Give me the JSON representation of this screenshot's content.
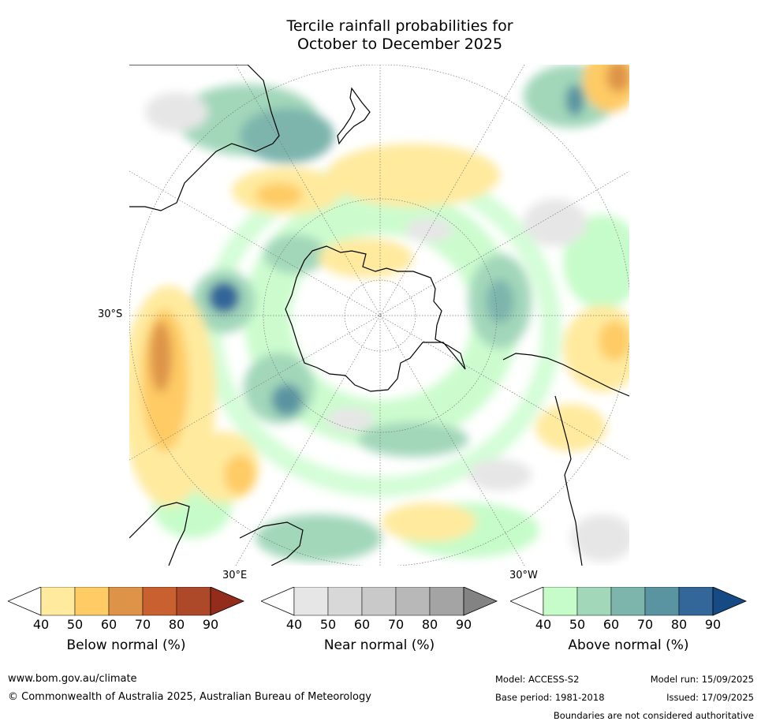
{
  "title": {
    "line1": "Tercile rainfall probabilities for",
    "line2": "October to December 2025"
  },
  "map": {
    "projection": "south polar stereographic",
    "lat_label": "30°S",
    "lon_labels": {
      "left": "30°E",
      "right": "30°W"
    },
    "colors": {
      "land_outline": "#000000",
      "graticule": "#777777",
      "water": "#ffffff"
    }
  },
  "colorbars": [
    {
      "label": "Below normal (%)",
      "ticks": [
        "40",
        "50",
        "60",
        "70",
        "80",
        "90"
      ],
      "colors": [
        "#ffffff",
        "#ffea9e",
        "#fecb65",
        "#de9448",
        "#c8602f",
        "#ad4829",
        "#942c1c"
      ]
    },
    {
      "label": "Near normal (%)",
      "ticks": [
        "40",
        "50",
        "60",
        "70",
        "80",
        "90"
      ],
      "colors": [
        "#ffffff",
        "#e6e6e6",
        "#d8d8d8",
        "#c9c9c9",
        "#b8b8b8",
        "#a4a4a4",
        "#838383"
      ]
    },
    {
      "label": "Above normal (%)",
      "ticks": [
        "40",
        "50",
        "60",
        "70",
        "80",
        "90"
      ],
      "colors": [
        "#ffffff",
        "#c6fcc9",
        "#a2d7ba",
        "#7db5ad",
        "#5a94a1",
        "#336699",
        "#154a85"
      ]
    }
  ],
  "footer": {
    "website": "www.bom.gov.au/climate",
    "copyright": "© Commonwealth of Australia 2025, Australian Bureau of Meteorology",
    "model": "Model: ACCESS-S2",
    "model_run": "Model run: 15/09/2025",
    "base_period": "Base period: 1981-2018",
    "issued": "Issued: 17/09/2025",
    "disclaimer": "Boundaries are not considered authoritative"
  }
}
